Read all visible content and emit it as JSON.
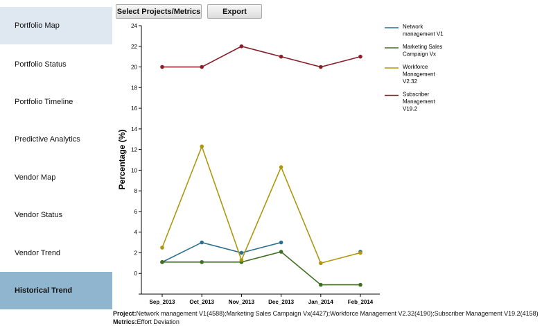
{
  "sidebar": {
    "items": [
      {
        "label": "Portfolio Map"
      },
      {
        "label": "Portfolio Status"
      },
      {
        "label": "Portfolio Timeline"
      },
      {
        "label": "Predictive Analytics"
      },
      {
        "label": "Vendor Map"
      },
      {
        "label": "Vendor Status"
      },
      {
        "label": "Vendor Trend"
      },
      {
        "label": "Historical Trend"
      }
    ],
    "active_index": 7
  },
  "toolbar": {
    "select_label": "Select Projects/Metrics",
    "export_label": "Export"
  },
  "footer": {
    "project_label": "Project:",
    "project_value": "Network management V1(4588);Marketing Sales Campaign Vx(4427);Workforce Management V2.32(4190);Subscriber Management V19.2(4158)",
    "metrics_label": "Metrics:",
    "metrics_value": "Effort Deviation"
  },
  "chart_data": {
    "type": "line",
    "ylabel": "Percentage (%)",
    "xlabel": "",
    "ylim": [
      -2,
      24
    ],
    "yticks": [
      0,
      2,
      4,
      6,
      8,
      10,
      12,
      14,
      16,
      18,
      20,
      22,
      24
    ],
    "categories": [
      "Sep_2013",
      "Oct_2013",
      "Nov_2013",
      "Dec_2013",
      "Jan_2014",
      "Feb_2014"
    ],
    "grid": false,
    "legend_position": "top-right",
    "series": [
      {
        "name": "Network management V1",
        "color": "#2a6f8e",
        "values": [
          1.1,
          3.0,
          2.0,
          3.0,
          null,
          2.1
        ]
      },
      {
        "name": "Marketing Sales Campaign Vx",
        "color": "#3f6f22",
        "values": [
          1.1,
          1.1,
          1.1,
          2.1,
          -1.1,
          -1.1
        ]
      },
      {
        "name": "Workforce Management V2.32",
        "color": "#b0960e",
        "values": [
          2.5,
          12.3,
          1.3,
          10.3,
          1.0,
          2.0
        ]
      },
      {
        "name": "Subscriber Management V19.2",
        "color": "#8a1f2a",
        "values": [
          20.0,
          20.0,
          22.0,
          21.0,
          20.0,
          21.0
        ]
      }
    ]
  }
}
